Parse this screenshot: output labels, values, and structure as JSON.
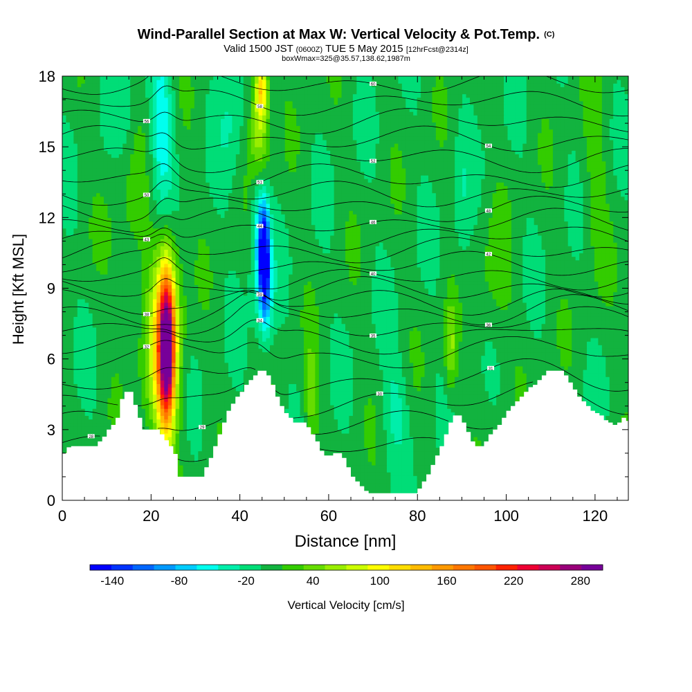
{
  "header": {
    "title": "Wind-Parallel Section at Max W: Vertical Velocity & Pot.Temp.",
    "copyright": "(C)",
    "subtitle_valid": "Valid 1500 JST",
    "subtitle_utc": "(0600Z)",
    "subtitle_date": "TUE 5 May 2015",
    "subtitle_fcst": "[12hrFcst@2314z]",
    "box_info": "boxWmax=325@35.57,138.62,1987m"
  },
  "colors": {
    "field_base": "#12b33f",
    "terrain": "#ffffff",
    "contour": "#000000"
  },
  "chart_data": {
    "type": "heatmap",
    "xlabel": "Distance [nm]",
    "ylabel": "Height [Kft MSL]",
    "xlim": [
      0,
      127.5
    ],
    "ylim": [
      0,
      18
    ],
    "x_ticks": [
      "0",
      "20",
      "40",
      "60",
      "80",
      "100",
      "120"
    ],
    "x_tick_values": [
      0,
      20,
      40,
      60,
      80,
      100,
      120
    ],
    "y_ticks": [
      "0",
      "3",
      "6",
      "9",
      "12",
      "15",
      "18"
    ],
    "y_tick_values": [
      0,
      3,
      6,
      9,
      12,
      15,
      18
    ],
    "colorbar": {
      "label": "Vertical Velocity [cm/s]",
      "tick_labels": [
        "-140",
        "-80",
        "-20",
        "40",
        "100",
        "160",
        "220",
        "280"
      ],
      "tick_values": [
        -140,
        -80,
        -20,
        40,
        100,
        160,
        220,
        280
      ],
      "range": [
        -160,
        300
      ],
      "colors": [
        "#0000ff",
        "#0033ff",
        "#0066ff",
        "#0099ff",
        "#00ccff",
        "#00ffee",
        "#00eeaa",
        "#00dd77",
        "#12b33f",
        "#33cc00",
        "#66dd00",
        "#99ee00",
        "#ccff00",
        "#ffff00",
        "#ffdd00",
        "#ffbb00",
        "#ff9900",
        "#ff7700",
        "#ff5500",
        "#ff2200",
        "#ee0033",
        "#cc0055",
        "#99007a",
        "#770099"
      ]
    },
    "terrain_profile": {
      "x": [
        0,
        1.2,
        7.4,
        8,
        9,
        10,
        11,
        12,
        12.5,
        13,
        14,
        15,
        17,
        18,
        19,
        21,
        22,
        24,
        25.5,
        26,
        27.5,
        28,
        31,
        32,
        33,
        34,
        35,
        36,
        37,
        38,
        39,
        40,
        41,
        42,
        43,
        44,
        45,
        46,
        47,
        48,
        49,
        50,
        51,
        52,
        53,
        54,
        55,
        56,
        57,
        58,
        59,
        60,
        61,
        62,
        63,
        64,
        65,
        66,
        67,
        68,
        69,
        70,
        79,
        80,
        81,
        82,
        83,
        84,
        85,
        86,
        87,
        88,
        89,
        90,
        91,
        92,
        93,
        94,
        95,
        96,
        97,
        98,
        99,
        100,
        101,
        102,
        103,
        104,
        105,
        106,
        107,
        108,
        109,
        112,
        113,
        114,
        115,
        116,
        117,
        118,
        119,
        121,
        122,
        123,
        124,
        125,
        126,
        127.5
      ],
      "height": [
        2.0,
        2.3,
        2.3,
        2.5,
        2.7,
        3.0,
        3.2,
        3.5,
        3.9,
        4.3,
        4.6,
        4.6,
        3.5,
        3.0,
        3.0,
        3.0,
        2.8,
        2.3,
        1.8,
        1.0,
        1.0,
        1.0,
        1.0,
        1.4,
        1.8,
        2.3,
        2.8,
        3.3,
        3.8,
        4.1,
        4.4,
        4.6,
        4.9,
        5.1,
        5.3,
        5.5,
        5.5,
        5.3,
        4.9,
        4.4,
        4.0,
        3.7,
        3.5,
        3.3,
        3.3,
        3.3,
        3.1,
        2.8,
        2.5,
        2.1,
        1.9,
        1.9,
        2.0,
        2.0,
        1.8,
        1.4,
        1.0,
        0.8,
        0.6,
        0.4,
        0.3,
        0.3,
        0.3,
        0.5,
        0.8,
        1.1,
        1.5,
        1.9,
        2.3,
        2.8,
        3.3,
        3.6,
        3.6,
        3.3,
        2.9,
        2.5,
        2.3,
        2.3,
        2.5,
        2.8,
        3.0,
        3.2,
        3.5,
        3.8,
        4.0,
        4.2,
        4.4,
        4.6,
        4.8,
        4.9,
        5.1,
        5.3,
        5.5,
        5.5,
        5.3,
        5.0,
        4.7,
        4.4,
        4.2,
        4.0,
        3.8,
        3.6,
        3.4,
        3.3,
        3.2,
        3.3,
        3.5,
        3.3
      ]
    },
    "velocity_features": [
      {
        "x": 23.5,
        "y": 6.5,
        "sx": 1.2,
        "sy": 2.1,
        "w": 240
      },
      {
        "x": 23.5,
        "y": 6.8,
        "sx": 2.2,
        "sy": 3.1,
        "w": 90
      },
      {
        "x": 21.5,
        "y": 6.0,
        "sx": 2.5,
        "sy": 2.5,
        "w": 50
      },
      {
        "x": 45.5,
        "y": 10.3,
        "sx": 0.8,
        "sy": 1.4,
        "w": -150
      },
      {
        "x": 44.5,
        "y": 11.5,
        "sx": 1.4,
        "sy": 2.2,
        "w": -70
      },
      {
        "x": 46.0,
        "y": 8.5,
        "sx": 1.2,
        "sy": 1.5,
        "w": -50
      },
      {
        "x": 44.5,
        "y": 15.5,
        "sx": 1.5,
        "sy": 1.6,
        "w": 80
      },
      {
        "x": 44.8,
        "y": 17.5,
        "sx": 1.0,
        "sy": 0.8,
        "w": 110
      },
      {
        "x": 22.5,
        "y": 15.5,
        "sx": 1.7,
        "sy": 2.5,
        "w": -60
      },
      {
        "x": 14.0,
        "y": 17.0,
        "sx": 1.5,
        "sy": 1.5,
        "w": -20
      },
      {
        "x": 38.0,
        "y": 16.5,
        "sx": 2.0,
        "sy": 2.0,
        "w": -25
      },
      {
        "x": 87.5,
        "y": 6.5,
        "sx": 1.0,
        "sy": 1.4,
        "w": 55
      },
      {
        "x": 56.0,
        "y": 4.5,
        "sx": 1.0,
        "sy": 1.5,
        "w": 45
      },
      {
        "x": 90.0,
        "y": 12.0,
        "sx": 1.5,
        "sy": 2.5,
        "w": -20
      },
      {
        "x": 75.0,
        "y": 4.0,
        "sx": 2.0,
        "sy": 1.5,
        "w": -30
      },
      {
        "x": 97.0,
        "y": 9.0,
        "sx": 3.0,
        "sy": 2.0,
        "w": 20
      },
      {
        "x": 15.0,
        "y": 11.0,
        "sx": 3.0,
        "sy": 2.5,
        "w": 18
      },
      {
        "x": 120.0,
        "y": 13.5,
        "sx": 2.0,
        "sy": 3.0,
        "w": 20
      }
    ],
    "isentropes": {
      "base_levels": [
        2.2,
        3.2,
        4.1,
        5.0,
        6.1,
        6.8,
        7.4,
        7.9,
        8.4,
        8.9,
        9.4,
        10.0,
        10.6,
        11.2,
        11.8,
        12.4,
        13.0,
        13.7,
        14.5,
        15.3,
        16.1,
        16.9,
        17.7
      ],
      "labels": [
        "28",
        "29",
        "30",
        "31",
        "32",
        "34",
        "35",
        "36",
        "38",
        "39",
        "40",
        "42",
        "43",
        "44",
        "46",
        "48",
        "50",
        "51",
        "52",
        "54",
        "56",
        "58",
        "60"
      ]
    }
  }
}
